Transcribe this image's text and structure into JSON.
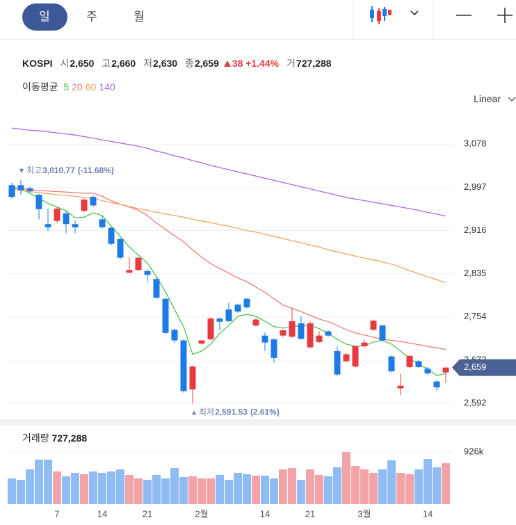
{
  "tabs": {
    "items": [
      "일",
      "주",
      "월"
    ],
    "selected": 0
  },
  "summary": {
    "symbol": "KOSPI",
    "open_label": "시",
    "open": "2,650",
    "high_label": "고",
    "high": "2,660",
    "low_label": "저",
    "low": "2,630",
    "close_label": "종",
    "close": "2,659",
    "change": "38",
    "change_pct": "+1.44%",
    "volume_label": "거",
    "volume": "727,288"
  },
  "chart_data": {
    "type": "candlestick",
    "legend_title": "이동평균",
    "scale_label": "Linear",
    "log_scale": false,
    "grid": true,
    "up_color": "#e8393f",
    "down_color": "#1e7be6",
    "volume_up_color": "#f2a3a8",
    "volume_down_color": "#8fbcf2",
    "categories": [
      null,
      null,
      null,
      null,
      null,
      "7",
      null,
      null,
      null,
      null,
      "14",
      null,
      null,
      null,
      null,
      "21",
      null,
      null,
      null,
      null,
      null,
      "2월",
      null,
      null,
      null,
      null,
      null,
      null,
      "14",
      null,
      null,
      null,
      null,
      "21",
      null,
      null,
      null,
      null,
      null,
      "3월",
      null,
      null,
      null,
      null,
      null,
      null,
      "14",
      null,
      null
    ],
    "ohlc": {
      "open": [
        3001,
        3001,
        2995,
        2983,
        2928,
        2934,
        2948,
        2928,
        2953,
        2979,
        2937,
        2921,
        2900,
        2837,
        2842,
        2840,
        2825,
        2788,
        2730,
        2710,
        2618,
        2704,
        2712,
        2751,
        2768,
        2777,
        2788,
        2738,
        2719,
        2712,
        2719,
        2717,
        2742,
        2697,
        2707,
        2727,
        2690,
        2671,
        2661,
        2699,
        2730,
        2738,
        2680,
        2620,
        2660,
        2671,
        2657,
        2633,
        2650
      ],
      "high": [
        3006,
        3010.77,
        2998,
        2985,
        2957,
        2960,
        2952,
        2935,
        2976,
        2982,
        2944,
        2923,
        2902,
        2866,
        2866,
        2843,
        2828,
        2790,
        2732,
        2712,
        2663,
        2710,
        2753,
        2753,
        2781,
        2779,
        2790,
        2752,
        2725,
        2714,
        2730,
        2771,
        2755,
        2746,
        2727,
        2729,
        2699,
        2686,
        2701,
        2712,
        2749,
        2740,
        2682,
        2647,
        2682,
        2673,
        2660,
        2635,
        2660
      ],
      "low": [
        2976,
        2983,
        2987,
        2937,
        2915,
        2930,
        2911,
        2911,
        2950,
        2960,
        2919,
        2888,
        2862,
        2836,
        2840,
        2820,
        2788,
        2722,
        2705,
        2612,
        2591.53,
        2702,
        2710,
        2729,
        2744,
        2762,
        2770,
        2736,
        2690,
        2668,
        2716,
        2715,
        2711,
        2695,
        2705,
        2717,
        2643,
        2669,
        2659,
        2697,
        2728,
        2708,
        2650,
        2607,
        2658,
        2658,
        2646,
        2616,
        2630
      ],
      "close": [
        2979,
        2992,
        2990,
        2956,
        2922,
        2957,
        2928,
        2922,
        2974,
        2963,
        2922,
        2891,
        2865,
        2842,
        2865,
        2833,
        2790,
        2724,
        2710,
        2615,
        2661,
        2710,
        2751,
        2745,
        2746,
        2764,
        2772,
        2749,
        2706,
        2677,
        2729,
        2746,
        2713,
        2742,
        2719,
        2719,
        2646,
        2684,
        2699,
        2706,
        2747,
        2710,
        2652,
        2625,
        2681,
        2660,
        2648,
        2622,
        2659
      ]
    },
    "series": [
      {
        "name": "5",
        "color": "#4cc34f",
        "values": [
          2999,
          2993,
          2986,
          2976,
          2967,
          2960,
          2953,
          2940,
          2941,
          2949,
          2944,
          2924,
          2905,
          2885,
          2870,
          2855,
          2829,
          2801,
          2768,
          2736,
          2684,
          2690,
          2703,
          2723,
          2738,
          2755,
          2759,
          2755,
          2746,
          2736,
          2733,
          2736,
          2737,
          2738,
          2732,
          2723,
          2712,
          2703,
          2699,
          2700,
          2707,
          2710,
          2703,
          2690,
          2677,
          2664,
          2657,
          2644,
          2648
        ]
      },
      {
        "name": "20",
        "color": "#f07a7a",
        "values": [
          2996,
          2994,
          2993,
          2991,
          2990,
          2989,
          2988,
          2987,
          2986,
          2986,
          2980,
          2972,
          2965,
          2960,
          2954,
          2944,
          2930,
          2918,
          2906,
          2895,
          2880,
          2866,
          2854,
          2845,
          2836,
          2827,
          2820,
          2810,
          2800,
          2788,
          2776,
          2770,
          2764,
          2757,
          2750,
          2745,
          2738,
          2730,
          2724,
          2720,
          2716,
          2712,
          2710,
          2708,
          2705,
          2702,
          2699,
          2696,
          2693
        ]
      },
      {
        "name": "60",
        "color": "#f5a35c",
        "values": [
          2993,
          2991,
          2989,
          2987,
          2985,
          2983,
          2982,
          2980,
          2978,
          2976,
          2972,
          2968,
          2965,
          2961,
          2957,
          2954,
          2950,
          2947,
          2944,
          2941,
          2937,
          2934,
          2931,
          2927,
          2924,
          2920,
          2916,
          2913,
          2909,
          2905,
          2901,
          2897,
          2893,
          2889,
          2885,
          2880,
          2876,
          2872,
          2868,
          2864,
          2861,
          2857,
          2853,
          2847,
          2841,
          2835,
          2829,
          2824,
          2818
        ]
      },
      {
        "name": "140",
        "color": "#a66be0",
        "values": [
          3108,
          3106,
          3104,
          3103,
          3101,
          3099,
          3097,
          3095,
          3092,
          3089,
          3086,
          3083,
          3080,
          3077,
          3074,
          3070,
          3065,
          3061,
          3056,
          3052,
          3047,
          3043,
          3038,
          3034,
          3030,
          3026,
          3022,
          3018,
          3014,
          3010,
          3006,
          3002,
          2998,
          2994,
          2990,
          2986,
          2982,
          2978,
          2975,
          2972,
          2969,
          2966,
          2963,
          2960,
          2957,
          2954,
          2950,
          2947,
          2943
        ]
      }
    ],
    "ylim": [
      2566,
      3120
    ],
    "yticks": [
      {
        "value": 2592,
        "label": "2,592"
      },
      {
        "value": 2673,
        "label": "2,673"
      },
      {
        "value": 2754,
        "label": "2,754"
      },
      {
        "value": 2835,
        "label": "2,835"
      },
      {
        "value": 2916,
        "label": "2,916"
      },
      {
        "value": 2997,
        "label": "2,997"
      },
      {
        "value": 3078,
        "label": "3,078"
      }
    ],
    "current": {
      "value": 2659,
      "label": "2,659"
    },
    "annotations": [
      {
        "label": "최고",
        "value": 3010.77,
        "text": "3,010.77",
        "change": "(-11.68%)"
      },
      {
        "label": "최저",
        "value": 2591.53,
        "text": "2,591.53",
        "change": "(2.61%)"
      }
    ],
    "volume": {
      "label": "거래량",
      "current": "727,288",
      "ylim": [
        0,
        1395000
      ],
      "yticks": [
        {
          "value": 926000,
          "label": "926k"
        }
      ],
      "values": [
        457000,
        432000,
        617000,
        790000,
        790000,
        580000,
        494000,
        556000,
        531000,
        580000,
        556000,
        580000,
        617000,
        519000,
        457000,
        432000,
        519000,
        457000,
        642000,
        482000,
        494000,
        457000,
        457000,
        519000,
        432000,
        556000,
        531000,
        506000,
        506000,
        457000,
        617000,
        642000,
        432000,
        617000,
        519000,
        494000,
        654000,
        926000,
        679000,
        617000,
        556000,
        617000,
        778000,
        556000,
        531000,
        617000,
        802000,
        654000,
        727288
      ]
    }
  }
}
